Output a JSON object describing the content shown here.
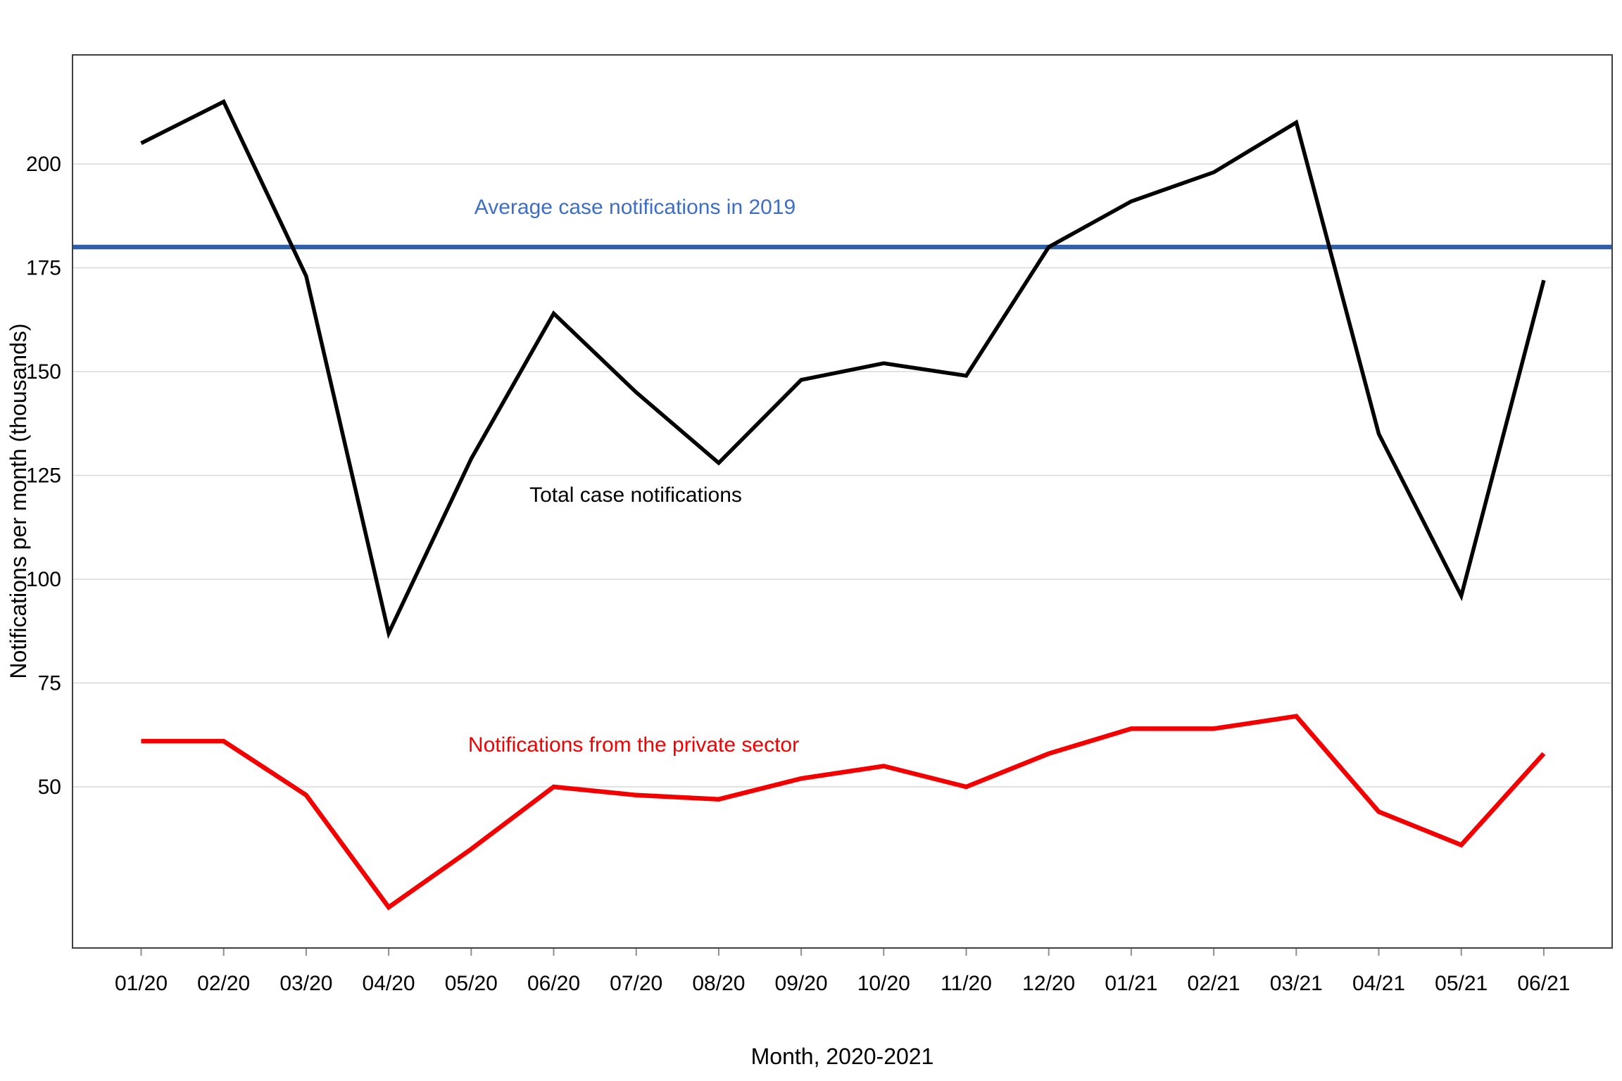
{
  "chart_data": {
    "type": "line",
    "title": "",
    "x": [
      "01/20",
      "02/20",
      "03/20",
      "04/20",
      "05/20",
      "06/20",
      "07/20",
      "08/20",
      "09/20",
      "10/20",
      "11/20",
      "12/20",
      "01/21",
      "02/21",
      "03/21",
      "04/21",
      "05/21",
      "06/21"
    ],
    "xlabel": "Month, 2020-2021",
    "ylabel": "Notifications per month (thousands)",
    "yticks": [
      50,
      75,
      100,
      125,
      150,
      175,
      200
    ],
    "ylim": [
      11,
      226
    ],
    "grid": true,
    "legend_position": "annotations-inline",
    "series": [
      {
        "name": "Total case notifications",
        "color": "#000000",
        "width": 5.5,
        "values": [
          205,
          215,
          173,
          87,
          129,
          164,
          145,
          128,
          148,
          152,
          149,
          180,
          191,
          198,
          210,
          135,
          96,
          172
        ]
      },
      {
        "name": "Notifications from the private sector",
        "color": "#f40000",
        "width": 6.5,
        "values": [
          61,
          61,
          48,
          21,
          35,
          50,
          48,
          47,
          52,
          55,
          50,
          58,
          64,
          64,
          67,
          44,
          36,
          58
        ]
      }
    ],
    "reference_line": {
      "label": "Average case notifications in 2019",
      "value": 180,
      "color": "#2e5fa8",
      "label_color": "#3d6ec8",
      "width": 6.5
    },
    "style": {
      "grid_color": "#d9d9d9",
      "border_color": "#404040",
      "tick_color": "#8f8f8f",
      "axis_text_color": "#000000",
      "background": "#ffffff"
    }
  }
}
